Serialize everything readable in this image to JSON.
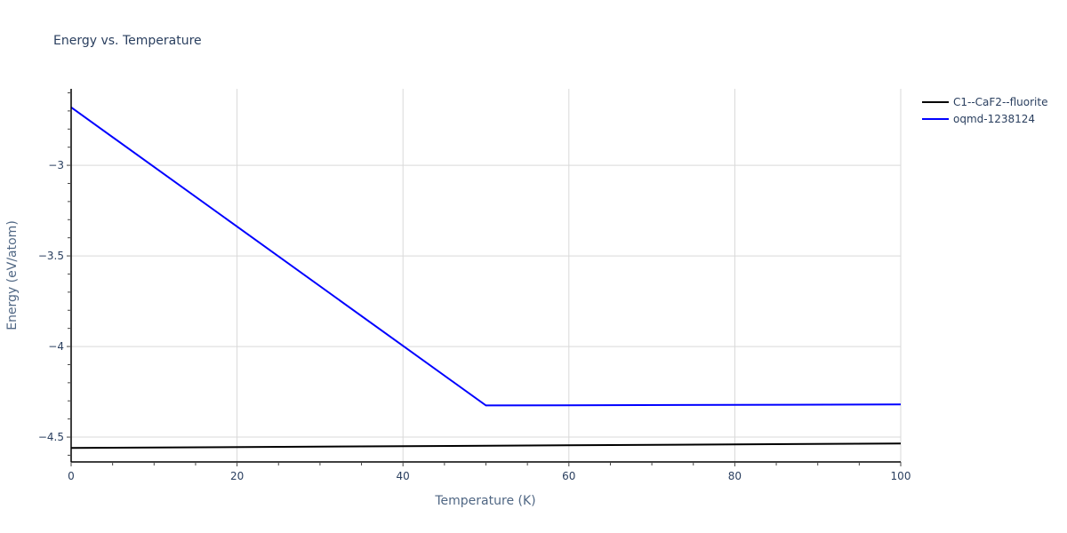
{
  "chart_data": {
    "type": "line",
    "title": "Energy vs. Temperature",
    "xlabel": "Temperature (K)",
    "ylabel": "Energy (eV/atom)",
    "xlim": [
      0,
      100
    ],
    "ylim": [
      -4.637,
      -2.578
    ],
    "x_ticks": [
      0,
      20,
      40,
      60,
      80,
      100
    ],
    "x_tick_labels": [
      "0",
      "20",
      "40",
      "60",
      "80",
      "100"
    ],
    "y_ticks": [
      -3,
      -3.5,
      -4,
      -4.5
    ],
    "y_tick_labels": [
      "−3",
      "−3.5",
      "−4",
      "−4.5"
    ],
    "x_minor_step": 5,
    "y_minor_step": 0.1,
    "grid": true,
    "legend_position": "top-right-outside",
    "series": [
      {
        "name": "C1--CaF2--fluorite",
        "color": "#000000",
        "x": [
          0,
          100
        ],
        "y": [
          -4.56,
          -4.535
        ]
      },
      {
        "name": "oqmd-1238124",
        "color": "#0000ff",
        "x": [
          0,
          50,
          100
        ],
        "y": [
          -2.68,
          -4.325,
          -4.32
        ]
      }
    ]
  }
}
